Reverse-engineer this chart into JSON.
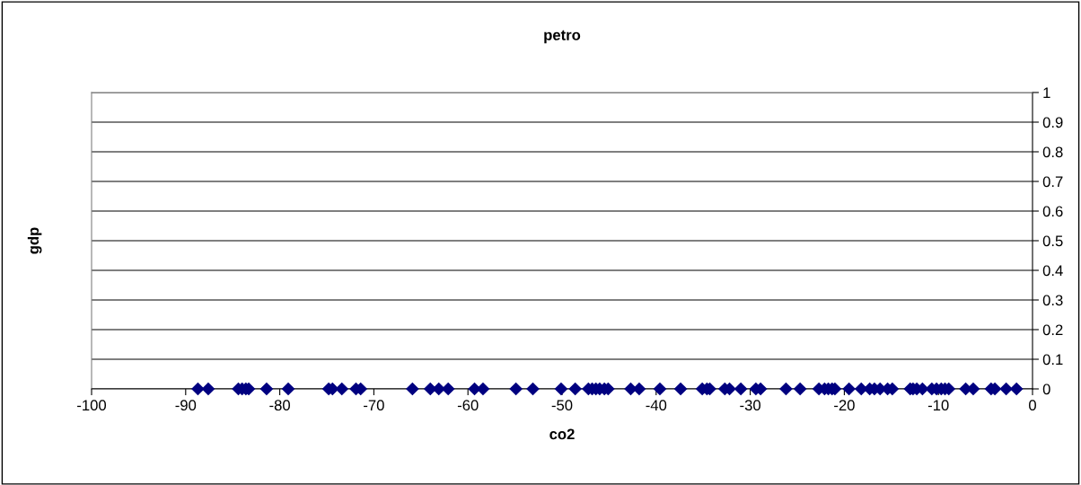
{
  "chart_data": {
    "type": "scatter",
    "title": "petro",
    "xlabel": "co2",
    "ylabel": "gdp",
    "x": [
      -88.7,
      -87.6,
      -84.4,
      -84.0,
      -83.6,
      -83.3,
      -81.4,
      -79.1,
      -74.8,
      -74.4,
      -73.4,
      -71.9,
      -71.4,
      -65.9,
      -64.0,
      -63.1,
      -62.1,
      -59.3,
      -58.4,
      -54.9,
      -53.1,
      -50.1,
      -48.6,
      -47.2,
      -46.8,
      -46.4,
      -46.0,
      -45.5,
      -45.1,
      -42.7,
      -41.8,
      -39.6,
      -37.4,
      -35.1,
      -34.6,
      -34.3,
      -32.7,
      -32.2,
      -31.0,
      -29.4,
      -28.9,
      -26.2,
      -24.7,
      -22.7,
      -22.1,
      -21.7,
      -21.3,
      -21.0,
      -19.5,
      -18.2,
      -17.3,
      -16.8,
      -16.2,
      -15.4,
      -14.9,
      -13.0,
      -12.7,
      -12.3,
      -11.7,
      -10.7,
      -10.2,
      -9.7,
      -9.3,
      -8.9,
      -7.1,
      -6.3,
      -4.4,
      -4.0,
      -2.8,
      -1.7
    ],
    "values": [
      0,
      0,
      0,
      0,
      0,
      0,
      0,
      0,
      0,
      0,
      0,
      0,
      0,
      0,
      0,
      0,
      0,
      0,
      0,
      0,
      0,
      0,
      0,
      0,
      0,
      0,
      0,
      0,
      0,
      0,
      0,
      0,
      0,
      0,
      0,
      0,
      0,
      0,
      0,
      0,
      0,
      0,
      0,
      0,
      0,
      0,
      0,
      0,
      0,
      0,
      0,
      0,
      0,
      0,
      0,
      0,
      0,
      0,
      0,
      0,
      0,
      0,
      0,
      0,
      0,
      0,
      0,
      0,
      0,
      0
    ],
    "color": "#000080",
    "marker": "diamond",
    "xlim": [
      -100,
      0
    ],
    "xticks": [
      -100,
      -90,
      -80,
      -70,
      -60,
      -50,
      -40,
      -30,
      -20,
      -10,
      0
    ],
    "ylim": [
      0,
      1
    ],
    "yticks": [
      0,
      0.1,
      0.2,
      0.3,
      0.4,
      0.5,
      0.6,
      0.7,
      0.8,
      0.9,
      1
    ],
    "grid": "y"
  }
}
